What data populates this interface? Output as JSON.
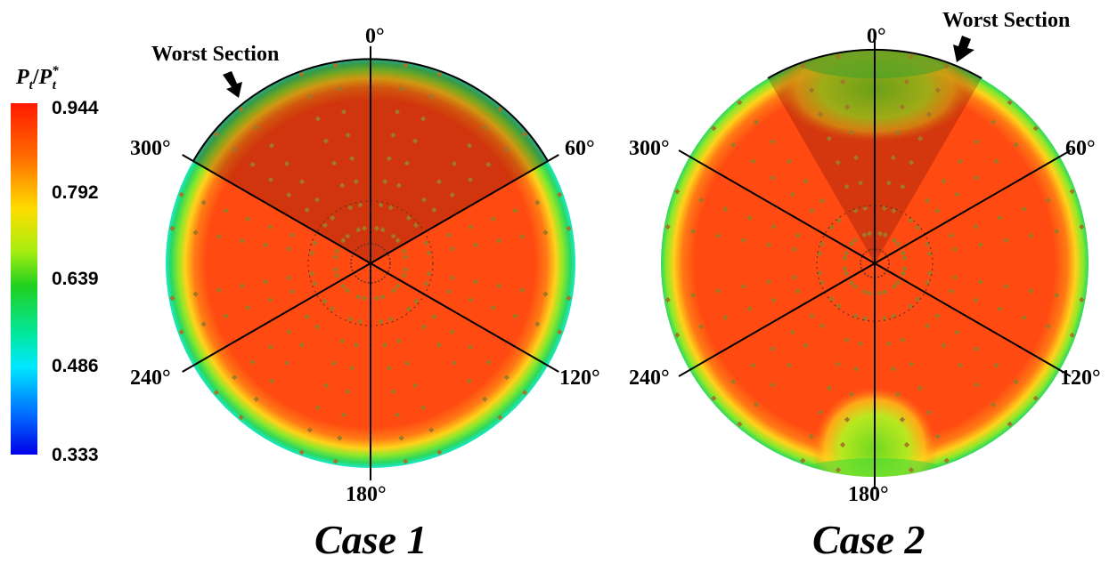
{
  "colorbar": {
    "variable": "P",
    "variable_sub": "t",
    "divider": "/",
    "denominator": "P",
    "denominator_sub": "t",
    "denominator_sup": "*",
    "ticks": [
      "0.944",
      "0.792",
      "0.639",
      "0.486",
      "0.333"
    ],
    "gradient_colors": [
      "#ff0000",
      "#ff6a00",
      "#ffd400",
      "#b6f000",
      "#1fd21f",
      "#00e0a0",
      "#00e8ff",
      "#0070ff",
      "#0000ee"
    ]
  },
  "angle_labels": {
    "a0": "0°",
    "a60": "60°",
    "a120": "120°",
    "a180": "180°",
    "a240": "240°",
    "a300": "300°"
  },
  "panels": [
    {
      "caption": "Case 1",
      "annotation": "Worst Section",
      "worst_sector_deg": [
        300,
        60
      ]
    },
    {
      "caption": "Case 2",
      "annotation": "Worst Section",
      "worst_sector_deg": [
        330,
        30
      ]
    }
  ],
  "colors": {
    "core_red": "#ff4a10",
    "edge_green": "#30dd55",
    "rim_cyan": "#18e8c8",
    "shade": "#5a0000",
    "probe": "#a07828"
  }
}
